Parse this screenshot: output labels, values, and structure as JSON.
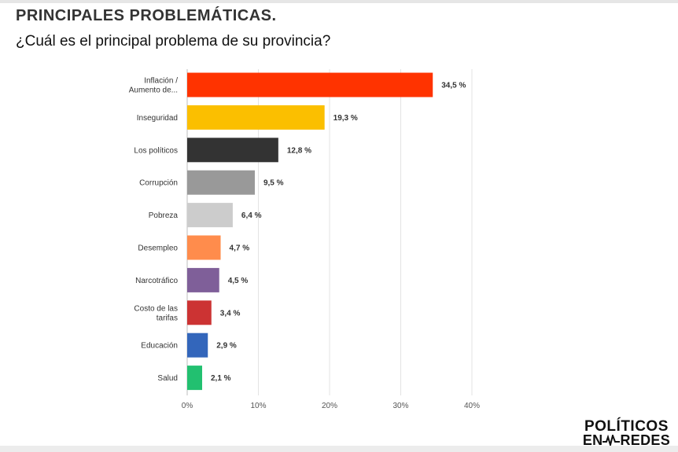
{
  "header": {
    "title": "PRINCIPALES PROBLEMÁTICAS.",
    "subtitle": "¿Cuál es el principal problema de su provincia?"
  },
  "chart_data": {
    "type": "bar",
    "orientation": "horizontal",
    "categories": [
      [
        "Inflación /",
        "Aumento de..."
      ],
      [
        "Inseguridad"
      ],
      [
        "Los políticos"
      ],
      [
        "Corrupción"
      ],
      [
        "Pobreza"
      ],
      [
        "Desempleo"
      ],
      [
        "Narcotráfico"
      ],
      [
        "Costo de las",
        "tarifas"
      ],
      [
        "Educación"
      ],
      [
        "Salud"
      ]
    ],
    "values": [
      34.5,
      19.3,
      12.8,
      9.5,
      6.4,
      4.7,
      4.5,
      3.4,
      2.9,
      2.1
    ],
    "value_labels": [
      "34,5 %",
      "19,3 %",
      "12,8 %",
      "9,5 %",
      "6,4 %",
      "4,7 %",
      "4,5 %",
      "3,4 %",
      "2,9 %",
      "2,1 %"
    ],
    "colors": [
      "#ff3300",
      "#fbbf00",
      "#333333",
      "#999999",
      "#cccccc",
      "#ff8c4c",
      "#7f5f99",
      "#cc3333",
      "#3366bb",
      "#22c070"
    ],
    "xlim": [
      0,
      40
    ],
    "xticks": [
      0,
      10,
      20,
      30,
      40
    ],
    "xtick_labels": [
      "0%",
      "10%",
      "20%",
      "30%",
      "40%"
    ],
    "grid": "vertical"
  },
  "logo": {
    "line1": "POLÍTICOS",
    "line2_left": "EN",
    "line2_right": "REDES"
  }
}
